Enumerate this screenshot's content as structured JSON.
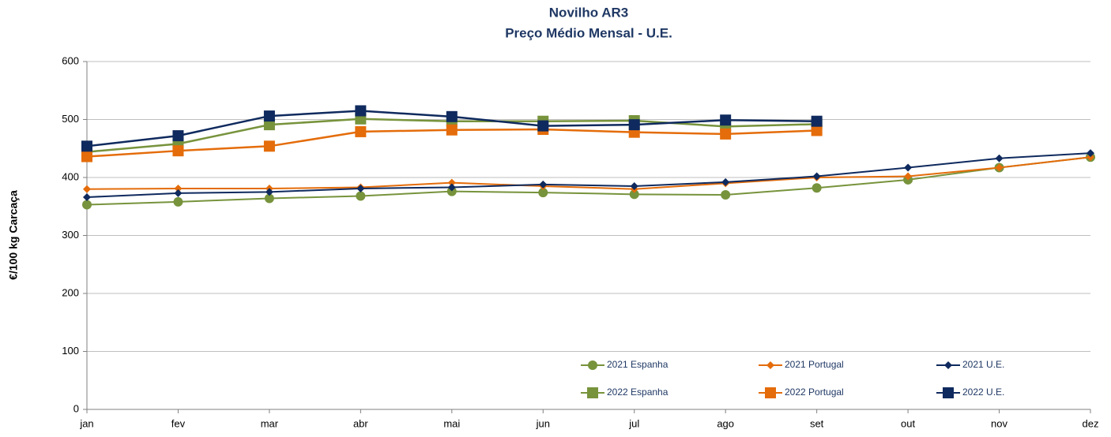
{
  "chart_data": {
    "type": "line",
    "title": "Novilho AR3",
    "subtitle": "Preço Médio Mensal - U.E.",
    "y_label": "€/100 kg  Carcaça",
    "categories": [
      "jan",
      "fev",
      "mar",
      "abr",
      "mai",
      "jun",
      "jul",
      "ago",
      "set",
      "out",
      "nov",
      "dez"
    ],
    "ylim": [
      0,
      600
    ],
    "yticks": [
      0,
      100,
      200,
      300,
      400,
      500,
      600
    ],
    "grid": true,
    "series": [
      {
        "name": "2021 Espanha",
        "color": "#77933c",
        "marker": "circle",
        "values": [
          353,
          358,
          364,
          368,
          376,
          374,
          371,
          370,
          382,
          396,
          417,
          435
        ]
      },
      {
        "name": "2021 Portugal",
        "color": "#e46c0a",
        "marker": "diamond",
        "values": [
          380,
          381,
          381,
          383,
          391,
          385,
          380,
          390,
          400,
          402,
          417,
          435
        ]
      },
      {
        "name": "2021 U.E.",
        "color": "#0f2a5e",
        "marker": "diamond",
        "values": [
          366,
          373,
          375,
          381,
          383,
          388,
          385,
          392,
          402,
          417,
          433,
          442
        ]
      },
      {
        "name": "2022 Espanha",
        "color": "#77933c",
        "marker": "square",
        "values": [
          444,
          458,
          491,
          501,
          497,
          497,
          498,
          488,
          492,
          null,
          null,
          null
        ]
      },
      {
        "name": "2022 Portugal",
        "color": "#e46c0a",
        "marker": "square",
        "values": [
          436,
          446,
          454,
          479,
          482,
          483,
          478,
          475,
          481,
          null,
          null,
          null
        ]
      },
      {
        "name": "2022 U.E.",
        "color": "#0f2a5e",
        "marker": "square",
        "values": [
          454,
          472,
          506,
          515,
          505,
          489,
          491,
          499,
          497,
          null,
          null,
          null
        ]
      }
    ]
  }
}
